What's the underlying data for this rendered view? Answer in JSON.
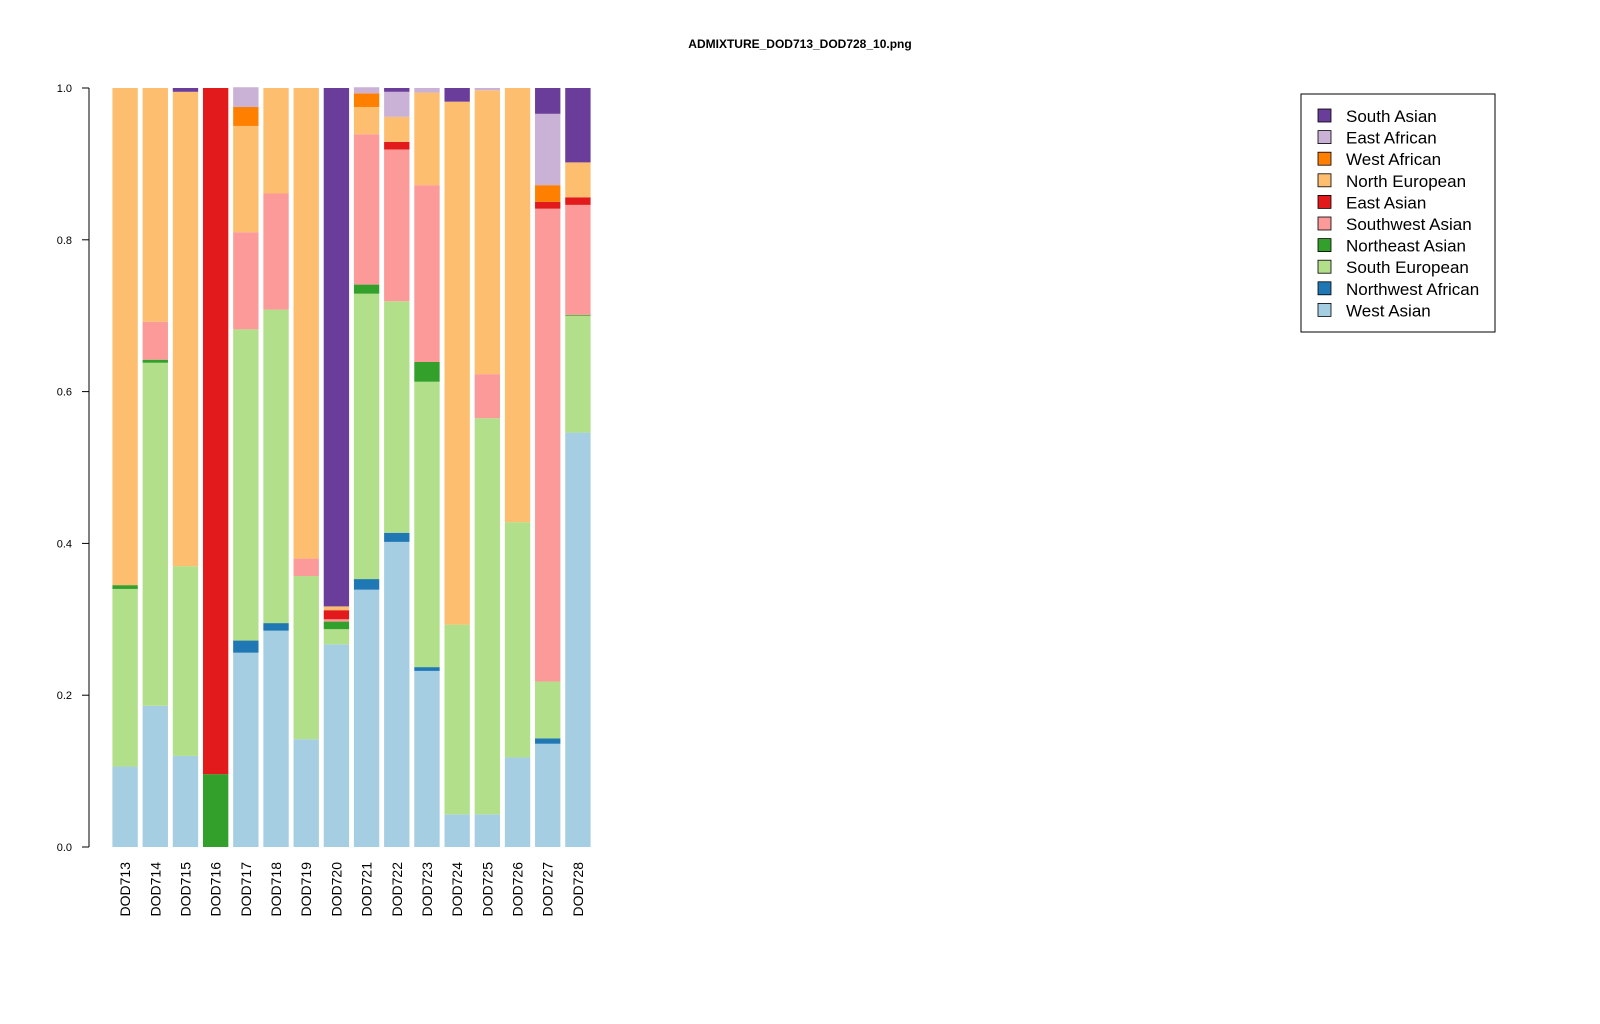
{
  "chart_data": {
    "type": "bar",
    "stacked": true,
    "title": "ADMIXTURE_DOD713_DOD728_10.png",
    "xlabel": "",
    "ylabel": "",
    "ylim": [
      0,
      1
    ],
    "yticks": [
      0,
      0.2,
      0.4,
      0.6,
      0.8,
      1.0
    ],
    "ytick_labels": [
      "0.0",
      "0.2",
      "0.4",
      "0.6",
      "0.8",
      "1.0"
    ],
    "legend_position": "top-right",
    "categories": [
      "DOD713",
      "DOD714",
      "DOD715",
      "DOD716",
      "DOD717",
      "DOD718",
      "DOD719",
      "DOD720",
      "DOD721",
      "DOD722",
      "DOD723",
      "DOD724",
      "DOD725",
      "DOD726",
      "DOD727",
      "DOD728"
    ],
    "series": [
      {
        "name": "West Asian",
        "color": "#a6cee3",
        "values": [
          0.106,
          0.186,
          0.12,
          0,
          0.256,
          0.285,
          0.142,
          0.267,
          0.339,
          0.402,
          0.232,
          0.043,
          0.043,
          0.118,
          0.136,
          0.546
        ]
      },
      {
        "name": "Northwest African",
        "color": "#1f78b4",
        "values": [
          0,
          0,
          0,
          0,
          0.016,
          0.01,
          0,
          0,
          0.014,
          0.012,
          0.005,
          0,
          0,
          0,
          0.007,
          0
        ]
      },
      {
        "name": "South European",
        "color": "#b2df8a",
        "values": [
          0.234,
          0.452,
          0.25,
          0,
          0.41,
          0.413,
          0.215,
          0.02,
          0.376,
          0.305,
          0.376,
          0.25,
          0.522,
          0.31,
          0.075,
          0.154
        ]
      },
      {
        "name": "Northeast Asian",
        "color": "#33a02c",
        "values": [
          0.005,
          0.004,
          0,
          0.096,
          0,
          0,
          0,
          0.01,
          0.012,
          0,
          0.026,
          0,
          0,
          0,
          0,
          0.001
        ]
      },
      {
        "name": "Southwest Asian",
        "color": "#fb9a99",
        "values": [
          0,
          0.05,
          0,
          0,
          0.128,
          0.153,
          0.023,
          0.003,
          0.198,
          0.2,
          0.233,
          0,
          0.058,
          0,
          0.623,
          0.145
        ]
      },
      {
        "name": "East Asian",
        "color": "#e31a1c",
        "values": [
          0,
          0,
          0,
          0.904,
          0,
          0,
          0,
          0.012,
          0,
          0.01,
          0,
          0,
          0,
          0,
          0.009,
          0.01
        ]
      },
      {
        "name": "North European",
        "color": "#fdbf6f",
        "values": [
          0.655,
          0.308,
          0.625,
          0,
          0.14,
          0.139,
          0.62,
          0.005,
          0.036,
          0.033,
          0.122,
          0.689,
          0.374,
          0.572,
          0,
          0.046
        ]
      },
      {
        "name": "West African",
        "color": "#ff7f00",
        "values": [
          0,
          0,
          0,
          0,
          0.025,
          0,
          0,
          0,
          0.018,
          0,
          0,
          0,
          0,
          0,
          0.022,
          0
        ]
      },
      {
        "name": "East African",
        "color": "#cab2d6",
        "values": [
          0,
          0,
          0,
          0,
          0.026,
          0,
          0,
          0,
          0.008,
          0.033,
          0.006,
          0,
          0.003,
          0,
          0.094,
          0
        ]
      },
      {
        "name": "South Asian",
        "color": "#6a3d9a",
        "values": [
          0,
          0,
          0.005,
          0,
          0,
          0,
          0,
          0.683,
          0,
          0.005,
          0,
          0.018,
          0,
          0,
          0.034,
          0.098
        ]
      }
    ],
    "legend_order": [
      "South Asian",
      "East African",
      "West African",
      "North European",
      "East Asian",
      "Southwest Asian",
      "Northeast Asian",
      "South European",
      "Northwest African",
      "West Asian"
    ]
  }
}
